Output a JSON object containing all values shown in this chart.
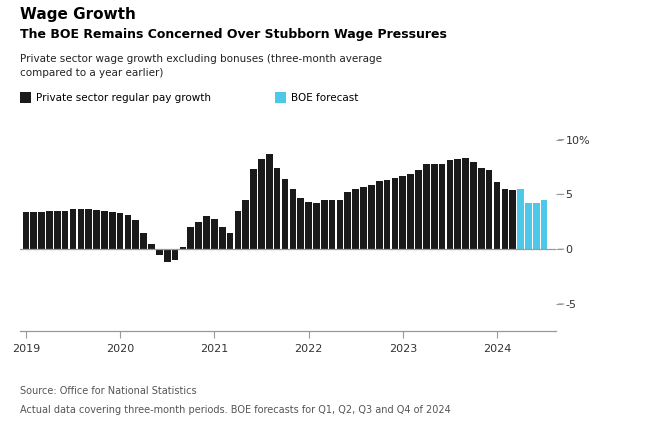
{
  "title1": "Wage Growth",
  "title2": "The BOE Remains Concerned Over Stubborn Wage Pressures",
  "subtitle": "Private sector wage growth excluding bonuses (three-month average\ncompared to a year earlier)",
  "legend_black": "Private sector regular pay growth",
  "legend_blue": "BOE forecast",
  "source": "Source: Office for National Statistics",
  "footnote": "Actual data covering three-month periods. BOE forecasts for Q1, Q2, Q3 and Q4 of 2024",
  "bar_color_black": "#1a1a1a",
  "bar_color_blue": "#4dc8e8",
  "background_color": "#ffffff",
  "axis_line_color": "#999999",
  "ylim": [
    -7.5,
    12.0
  ],
  "yticks": [
    -5,
    0,
    5,
    10
  ],
  "ytick_labels": [
    "-5",
    "0",
    "5",
    "10%"
  ],
  "values": [
    3.4,
    3.4,
    3.4,
    3.5,
    3.5,
    3.5,
    3.7,
    3.7,
    3.7,
    3.6,
    3.5,
    3.4,
    3.3,
    3.1,
    2.7,
    1.5,
    0.5,
    -0.5,
    -1.2,
    -1.0,
    0.2,
    2.0,
    2.5,
    3.0,
    2.8,
    2.0,
    1.5,
    3.5,
    4.5,
    7.3,
    8.2,
    8.7,
    7.4,
    6.4,
    5.5,
    4.7,
    4.3,
    4.2,
    4.5,
    4.5,
    4.5,
    5.2,
    5.5,
    5.7,
    5.9,
    6.2,
    6.3,
    6.5,
    6.7,
    6.9,
    7.2,
    7.8,
    7.8,
    7.8,
    8.1,
    8.2,
    8.3,
    8.0,
    7.4,
    7.2,
    6.1,
    5.5,
    5.4
  ],
  "forecast_values": [
    5.5,
    4.2,
    4.2,
    4.5
  ],
  "xtick_positions": [
    0,
    12,
    24,
    36,
    48,
    60
  ],
  "xtick_labels": [
    "2019",
    "2020",
    "2021",
    "2022",
    "2023",
    "2024"
  ]
}
